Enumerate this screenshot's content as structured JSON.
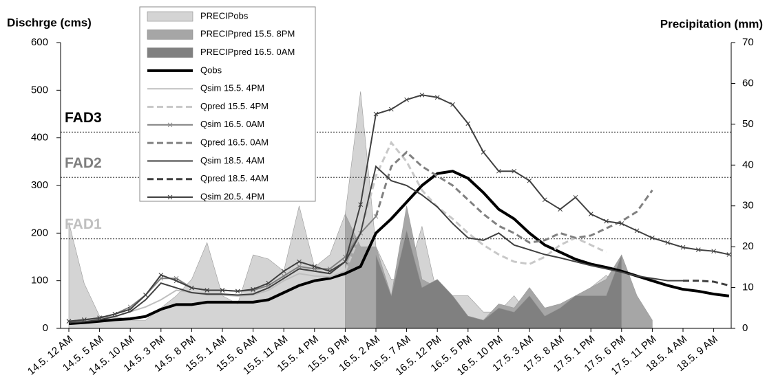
{
  "chart_data": {
    "type": "line",
    "y_label": "Dischrge (cms)",
    "y2_label": "Precipitation (mm)",
    "categories": [
      "14.5. 12 AM",
      null,
      "14.5. 5 AM",
      null,
      "14.5. 10 AM",
      null,
      "14.5. 3 PM",
      null,
      "14.5. 8 PM",
      null,
      "15.5. 1 AM",
      null,
      "15.5. 6 AM",
      null,
      "15.5. 11 AM",
      null,
      "15.5. 4 PM",
      null,
      "15.5. 9 PM",
      null,
      "16.5. 2 AM",
      null,
      "16.5. 7 AM",
      null,
      "16.5. 12 PM",
      null,
      "16.5. 5 PM",
      null,
      "16.5. 10 PM",
      null,
      "17.5. 3 AM",
      null,
      "17.5. 8 AM",
      null,
      "17.5. 1 PM",
      null,
      "17.5. 6 PM",
      null,
      "17.5. 11 PM",
      null,
      "18.5. 4 AM",
      null,
      "18.5. 9 AM",
      null
    ],
    "ylim": [
      0,
      600
    ],
    "yticks": [
      0,
      100,
      200,
      300,
      400,
      500,
      600
    ],
    "y2lim": [
      0,
      70
    ],
    "y2ticks": [
      0,
      10,
      20,
      30,
      40,
      50,
      60,
      70
    ],
    "thresholds": [
      {
        "label": "FAD3",
        "value": 412,
        "color": "#000000"
      },
      {
        "label": "FAD2",
        "value": 317,
        "color": "#7f7f7f"
      },
      {
        "label": "FAD1",
        "value": 188,
        "color": "#c0c0c0"
      }
    ],
    "series": [
      {
        "name": "PRECIPobs",
        "kind": "area",
        "axis": "y2",
        "color": "#d4d4d4",
        "values": [
          26,
          11,
          3,
          3,
          2,
          2,
          5,
          8,
          12,
          21,
          8,
          6,
          18,
          17,
          14,
          30,
          15,
          18,
          28,
          58,
          20,
          12,
          12,
          25,
          8,
          8,
          8,
          4,
          4,
          8,
          3,
          2,
          2,
          2,
          10,
          13,
          10,
          2,
          0,
          0,
          0,
          0,
          0,
          0
        ]
      },
      {
        "name": "PRECIPpred 15.5.  8PM",
        "kind": "area",
        "axis": "y2",
        "color": "#a6a6a6",
        "values": [
          null,
          null,
          null,
          null,
          null,
          null,
          null,
          null,
          null,
          null,
          null,
          null,
          null,
          null,
          null,
          null,
          null,
          null,
          28,
          20,
          20,
          8,
          30,
          12,
          10,
          6,
          3,
          2,
          6,
          5,
          10,
          5,
          6,
          8,
          10,
          12,
          18,
          8,
          2,
          null,
          null,
          null,
          null,
          null
        ]
      },
      {
        "name": "PRECIPpred 16.5.  0AM",
        "kind": "area",
        "axis": "y2",
        "color": "#808080",
        "values": [
          null,
          null,
          null,
          null,
          null,
          null,
          null,
          null,
          null,
          null,
          null,
          null,
          null,
          null,
          null,
          null,
          null,
          null,
          null,
          null,
          18,
          8,
          24,
          10,
          12,
          8,
          3,
          2,
          5,
          4,
          8,
          3,
          5,
          8,
          8,
          8,
          18,
          null,
          null,
          null,
          null,
          null,
          null,
          null
        ]
      },
      {
        "name": "Qobs",
        "kind": "line",
        "color": "#000000",
        "width": 4,
        "values": [
          10,
          12,
          15,
          18,
          20,
          25,
          40,
          50,
          50,
          55,
          55,
          55,
          55,
          60,
          75,
          90,
          100,
          105,
          115,
          130,
          200,
          230,
          265,
          300,
          325,
          330,
          315,
          285,
          250,
          230,
          200,
          175,
          160,
          145,
          135,
          128,
          120,
          110,
          100,
          90,
          82,
          78,
          72,
          68
        ]
      },
      {
        "name": "Qsim 15.5.  4PM",
        "kind": "line",
        "color": "#bfbfbf",
        "width": 2,
        "values": [
          15,
          17,
          20,
          25,
          35,
          45,
          60,
          80,
          75,
          70,
          70,
          68,
          70,
          80,
          100,
          115,
          110,
          108,
          120,
          null,
          null,
          null,
          null,
          null,
          null,
          null,
          null,
          null,
          null,
          null,
          null,
          null,
          null,
          null,
          null,
          null,
          null,
          null,
          null,
          null,
          null,
          null,
          null,
          null
        ]
      },
      {
        "name": "Qpred 15.5.  4PM",
        "kind": "line",
        "color": "#c8c8c8",
        "width": 3,
        "dash": true,
        "values": [
          null,
          null,
          null,
          null,
          null,
          null,
          null,
          null,
          null,
          null,
          null,
          null,
          null,
          null,
          null,
          null,
          null,
          null,
          120,
          200,
          320,
          390,
          350,
          290,
          255,
          230,
          200,
          175,
          155,
          140,
          135,
          150,
          175,
          190,
          175,
          160,
          null,
          null,
          null,
          null,
          null,
          null,
          null,
          null
        ]
      },
      {
        "name": "Qsim 16.5.  0AM",
        "kind": "line",
        "color": "#808080",
        "width": 2,
        "marker": true,
        "values": [
          15,
          18,
          22,
          30,
          45,
          70,
          105,
          105,
          85,
          80,
          80,
          78,
          80,
          90,
          110,
          130,
          125,
          125,
          150,
          200,
          235,
          null,
          null,
          null,
          null,
          null,
          null,
          null,
          null,
          null,
          null,
          null,
          null,
          null,
          null,
          null,
          null,
          null,
          null,
          null,
          null,
          null,
          null,
          null
        ]
      },
      {
        "name": "Qpred 16.5.  0AM",
        "kind": "line",
        "color": "#808080",
        "width": 3,
        "dash": true,
        "values": [
          null,
          null,
          null,
          null,
          null,
          null,
          null,
          null,
          null,
          null,
          null,
          null,
          null,
          null,
          null,
          null,
          null,
          null,
          null,
          null,
          235,
          340,
          370,
          340,
          320,
          300,
          270,
          240,
          215,
          200,
          180,
          185,
          200,
          190,
          195,
          210,
          225,
          245,
          290,
          null,
          null,
          null,
          null,
          null
        ]
      },
      {
        "name": "Qsim 18.5.  4AM",
        "kind": "line",
        "color": "#404040",
        "width": 2,
        "values": [
          12,
          14,
          18,
          25,
          35,
          60,
          95,
          85,
          75,
          72,
          72,
          70,
          72,
          85,
          105,
          125,
          120,
          115,
          140,
          200,
          340,
          310,
          300,
          280,
          255,
          220,
          190,
          185,
          200,
          175,
          165,
          155,
          148,
          140,
          132,
          125,
          118,
          110,
          105,
          100,
          100,
          null,
          null,
          null
        ]
      },
      {
        "name": "Qpred 18.5.  4AM",
        "kind": "line",
        "color": "#404040",
        "width": 3,
        "dash": true,
        "values": [
          null,
          null,
          null,
          null,
          null,
          null,
          null,
          null,
          null,
          null,
          null,
          null,
          null,
          null,
          null,
          null,
          null,
          null,
          null,
          null,
          null,
          null,
          null,
          null,
          null,
          null,
          null,
          null,
          null,
          null,
          null,
          null,
          null,
          null,
          null,
          null,
          null,
          null,
          null,
          null,
          100,
          100,
          98,
          90
        ]
      },
      {
        "name": "Qsim 20.5.  4PM",
        "kind": "line",
        "color": "#404040",
        "width": 2,
        "marker": true,
        "values": [
          15,
          18,
          22,
          30,
          40,
          70,
          112,
          100,
          85,
          80,
          80,
          78,
          82,
          95,
          120,
          140,
          130,
          120,
          140,
          260,
          450,
          460,
          480,
          490,
          485,
          470,
          430,
          370,
          330,
          330,
          310,
          270,
          250,
          275,
          240,
          225,
          220,
          205,
          190,
          180,
          170,
          165,
          162,
          155
        ]
      }
    ]
  }
}
